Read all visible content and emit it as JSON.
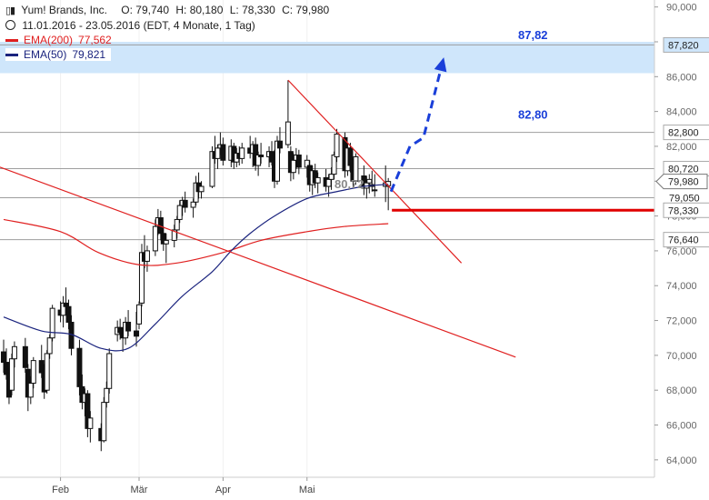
{
  "header": {
    "icon": "candlestick-icon",
    "instrument": "Yum! Brands, Inc.",
    "open": "O: 79,740",
    "high": "H: 80,180",
    "low": "L: 78,330",
    "close": "C: 79,980",
    "range": "11.01.2016 - 23.05.2016 (EDT, 4 Monate, 1 Tag)"
  },
  "legend": [
    {
      "label": "EMA(200)",
      "value": "77,562",
      "color": "#e02020"
    },
    {
      "label": "EMA(50)",
      "value": "79,821",
      "color": "#1a237e"
    }
  ],
  "colors": {
    "ema200": "#e02020",
    "ema50": "#1a237e",
    "target_band": "#cfe6fb",
    "annotation_blue": "#1a3fd9",
    "trendline": "#e02020",
    "support": "#e00000"
  },
  "chart_data": {
    "type": "candlestick",
    "ylim": [
      63,
      90.4
    ],
    "y_ticks": [
      "64,000",
      "66,000",
      "68,000",
      "70,000",
      "72,000",
      "74,000",
      "76,000",
      "78,000",
      "80,000",
      "82,000",
      "84,000",
      "86,000",
      "88,000",
      "90,000"
    ],
    "y_tick_values": [
      64,
      66,
      68,
      70,
      72,
      74,
      76,
      78,
      80,
      82,
      84,
      86,
      88,
      90
    ],
    "x_ticks": [
      {
        "label": "Feb",
        "date": "2016-02-01"
      },
      {
        "label": "Mär",
        "date": "2016-03-01"
      },
      {
        "label": "Apr",
        "date": "2016-04-01"
      },
      {
        "label": "Mai",
        "date": "2016-05-02"
      }
    ],
    "candles": [
      {
        "date": "2016-01-11",
        "o": 70.2,
        "h": 70.9,
        "l": 69.0,
        "c": 69.6
      },
      {
        "date": "2016-01-12",
        "o": 69.6,
        "h": 70.4,
        "l": 68.6,
        "c": 68.9
      },
      {
        "date": "2016-01-13",
        "o": 68.9,
        "h": 69.3,
        "l": 67.2,
        "c": 67.6
      },
      {
        "date": "2016-01-14",
        "o": 68.0,
        "h": 70.1,
        "l": 67.7,
        "c": 69.8
      },
      {
        "date": "2016-01-15",
        "o": 69.8,
        "h": 70.8,
        "l": 69.3,
        "c": 70.5
      },
      {
        "date": "2016-01-19",
        "o": 70.5,
        "h": 71.0,
        "l": 69.0,
        "c": 69.3
      },
      {
        "date": "2016-01-20",
        "o": 69.2,
        "h": 69.5,
        "l": 66.8,
        "c": 67.6
      },
      {
        "date": "2016-01-21",
        "o": 67.6,
        "h": 68.8,
        "l": 67.2,
        "c": 68.4
      },
      {
        "date": "2016-01-22",
        "o": 68.4,
        "h": 69.9,
        "l": 68.1,
        "c": 69.7
      },
      {
        "date": "2016-01-25",
        "o": 69.7,
        "h": 70.6,
        "l": 68.7,
        "c": 69.0
      },
      {
        "date": "2016-01-26",
        "o": 69.0,
        "h": 69.5,
        "l": 67.5,
        "c": 67.9
      },
      {
        "date": "2016-01-27",
        "o": 68.0,
        "h": 70.3,
        "l": 67.8,
        "c": 70.1
      },
      {
        "date": "2016-01-28",
        "o": 70.1,
        "h": 71.2,
        "l": 69.8,
        "c": 71.0
      },
      {
        "date": "2016-01-29",
        "o": 71.0,
        "h": 72.9,
        "l": 70.8,
        "c": 72.7
      },
      {
        "date": "2016-02-01",
        "o": 72.6,
        "h": 73.1,
        "l": 71.9,
        "c": 72.3
      },
      {
        "date": "2016-02-02",
        "o": 72.3,
        "h": 73.4,
        "l": 71.6,
        "c": 73.0
      },
      {
        "date": "2016-02-03",
        "o": 73.0,
        "h": 73.9,
        "l": 72.4,
        "c": 72.8
      },
      {
        "date": "2016-02-04",
        "o": 72.8,
        "h": 73.2,
        "l": 71.5,
        "c": 71.9
      },
      {
        "date": "2016-02-05",
        "o": 71.9,
        "h": 72.3,
        "l": 70.0,
        "c": 70.4
      },
      {
        "date": "2016-02-08",
        "o": 70.4,
        "h": 70.9,
        "l": 67.7,
        "c": 68.2
      },
      {
        "date": "2016-02-09",
        "o": 68.2,
        "h": 68.9,
        "l": 66.9,
        "c": 67.3
      },
      {
        "date": "2016-02-10",
        "o": 67.3,
        "h": 68.1,
        "l": 66.5,
        "c": 67.8
      },
      {
        "date": "2016-02-11",
        "o": 67.8,
        "h": 68.0,
        "l": 65.3,
        "c": 65.8
      },
      {
        "date": "2016-02-12",
        "o": 65.8,
        "h": 66.8,
        "l": 65.0,
        "c": 66.4
      },
      {
        "date": "2016-02-16",
        "o": 65.8,
        "h": 66.1,
        "l": 64.5,
        "c": 65.1
      },
      {
        "date": "2016-02-17",
        "o": 65.1,
        "h": 67.6,
        "l": 65.0,
        "c": 67.3
      },
      {
        "date": "2016-02-18",
        "o": 67.3,
        "h": 68.5,
        "l": 67.0,
        "c": 68.1
      },
      {
        "date": "2016-02-19",
        "o": 68.1,
        "h": 70.4,
        "l": 67.8,
        "c": 70.1
      },
      {
        "date": "2016-02-22",
        "o": 71.2,
        "h": 72.0,
        "l": 70.8,
        "c": 71.6
      },
      {
        "date": "2016-02-23",
        "o": 71.6,
        "h": 72.1,
        "l": 70.9,
        "c": 71.3
      },
      {
        "date": "2016-02-24",
        "o": 71.3,
        "h": 71.6,
        "l": 70.2,
        "c": 71.0
      },
      {
        "date": "2016-02-25",
        "o": 71.0,
        "h": 72.2,
        "l": 70.6,
        "c": 71.9
      },
      {
        "date": "2016-02-26",
        "o": 71.9,
        "h": 72.6,
        "l": 71.1,
        "c": 71.4
      },
      {
        "date": "2016-02-29",
        "o": 71.4,
        "h": 72.5,
        "l": 70.5,
        "c": 71.1
      },
      {
        "date": "2016-03-01",
        "o": 71.8,
        "h": 73.1,
        "l": 71.5,
        "c": 72.9
      },
      {
        "date": "2016-03-02",
        "o": 73.0,
        "h": 76.4,
        "l": 72.8,
        "c": 75.9
      },
      {
        "date": "2016-03-03",
        "o": 75.9,
        "h": 76.9,
        "l": 75.0,
        "c": 75.4
      },
      {
        "date": "2016-03-04",
        "o": 75.4,
        "h": 76.3,
        "l": 74.8,
        "c": 76.0
      },
      {
        "date": "2016-03-07",
        "o": 76.0,
        "h": 77.8,
        "l": 75.7,
        "c": 77.4
      },
      {
        "date": "2016-03-08",
        "o": 77.4,
        "h": 78.4,
        "l": 76.9,
        "c": 77.9
      },
      {
        "date": "2016-03-09",
        "o": 77.9,
        "h": 78.3,
        "l": 76.6,
        "c": 77.0
      },
      {
        "date": "2016-03-10",
        "o": 77.0,
        "h": 77.4,
        "l": 76.0,
        "c": 76.4
      },
      {
        "date": "2016-03-11",
        "o": 76.4,
        "h": 77.0,
        "l": 75.3,
        "c": 76.6
      },
      {
        "date": "2016-03-14",
        "o": 76.6,
        "h": 77.5,
        "l": 76.2,
        "c": 77.2
      },
      {
        "date": "2016-03-15",
        "o": 77.2,
        "h": 78.0,
        "l": 76.7,
        "c": 77.8
      },
      {
        "date": "2016-03-16",
        "o": 77.8,
        "h": 78.9,
        "l": 77.6,
        "c": 78.6
      },
      {
        "date": "2016-03-17",
        "o": 78.6,
        "h": 79.1,
        "l": 78.0,
        "c": 78.9
      },
      {
        "date": "2016-03-18",
        "o": 78.9,
        "h": 79.4,
        "l": 78.2,
        "c": 78.5
      },
      {
        "date": "2016-03-21",
        "o": 78.5,
        "h": 79.0,
        "l": 77.9,
        "c": 78.8
      },
      {
        "date": "2016-03-22",
        "o": 78.8,
        "h": 80.3,
        "l": 78.6,
        "c": 79.9
      },
      {
        "date": "2016-03-23",
        "o": 79.9,
        "h": 80.5,
        "l": 79.0,
        "c": 79.4
      },
      {
        "date": "2016-03-24",
        "o": 79.4,
        "h": 80.0,
        "l": 79.0,
        "c": 79.7
      },
      {
        "date": "2016-03-28",
        "o": 79.7,
        "h": 82.0,
        "l": 79.6,
        "c": 81.7
      },
      {
        "date": "2016-03-29",
        "o": 81.7,
        "h": 82.6,
        "l": 81.0,
        "c": 81.3
      },
      {
        "date": "2016-03-30",
        "o": 81.3,
        "h": 82.1,
        "l": 80.7,
        "c": 81.9
      },
      {
        "date": "2016-03-31",
        "o": 81.9,
        "h": 82.8,
        "l": 81.5,
        "c": 82.1
      },
      {
        "date": "2016-04-01",
        "o": 82.1,
        "h": 82.5,
        "l": 80.9,
        "c": 81.2
      },
      {
        "date": "2016-04-04",
        "o": 81.2,
        "h": 82.4,
        "l": 80.8,
        "c": 82.0
      },
      {
        "date": "2016-04-05",
        "o": 82.0,
        "h": 82.2,
        "l": 80.7,
        "c": 81.1
      },
      {
        "date": "2016-04-06",
        "o": 81.1,
        "h": 81.9,
        "l": 80.8,
        "c": 81.6
      },
      {
        "date": "2016-04-07",
        "o": 81.6,
        "h": 82.0,
        "l": 80.9,
        "c": 81.3
      },
      {
        "date": "2016-04-08",
        "o": 81.3,
        "h": 82.2,
        "l": 81.0,
        "c": 81.9
      },
      {
        "date": "2016-04-11",
        "o": 81.9,
        "h": 82.6,
        "l": 81.3,
        "c": 81.6
      },
      {
        "date": "2016-04-12",
        "o": 81.6,
        "h": 82.3,
        "l": 80.8,
        "c": 82.1
      },
      {
        "date": "2016-04-13",
        "o": 82.1,
        "h": 82.5,
        "l": 80.6,
        "c": 80.9
      },
      {
        "date": "2016-04-14",
        "o": 80.9,
        "h": 81.7,
        "l": 80.3,
        "c": 81.5
      },
      {
        "date": "2016-04-15",
        "o": 81.5,
        "h": 82.2,
        "l": 81.0,
        "c": 81.4
      },
      {
        "date": "2016-04-18",
        "o": 81.4,
        "h": 82.0,
        "l": 80.8,
        "c": 81.7
      },
      {
        "date": "2016-04-19",
        "o": 81.7,
        "h": 82.3,
        "l": 80.9,
        "c": 81.1
      },
      {
        "date": "2016-04-20",
        "o": 81.1,
        "h": 81.8,
        "l": 79.6,
        "c": 80.0
      },
      {
        "date": "2016-04-21",
        "o": 80.0,
        "h": 82.6,
        "l": 79.8,
        "c": 82.3
      },
      {
        "date": "2016-04-22",
        "o": 82.3,
        "h": 83.1,
        "l": 81.6,
        "c": 81.9
      },
      {
        "date": "2016-04-25",
        "o": 82.1,
        "h": 85.8,
        "l": 81.9,
        "c": 83.4
      },
      {
        "date": "2016-04-26",
        "o": 81.7,
        "h": 82.0,
        "l": 80.0,
        "c": 80.5
      },
      {
        "date": "2016-04-27",
        "o": 80.5,
        "h": 81.6,
        "l": 80.1,
        "c": 81.2
      },
      {
        "date": "2016-04-28",
        "o": 81.2,
        "h": 81.9,
        "l": 80.7,
        "c": 81.5
      },
      {
        "date": "2016-04-29",
        "o": 81.5,
        "h": 81.8,
        "l": 80.4,
        "c": 80.8
      },
      {
        "date": "2016-05-02",
        "o": 80.8,
        "h": 81.5,
        "l": 80.2,
        "c": 81.2
      },
      {
        "date": "2016-05-03",
        "o": 80.9,
        "h": 81.2,
        "l": 79.4,
        "c": 79.8
      },
      {
        "date": "2016-05-04",
        "o": 79.8,
        "h": 80.9,
        "l": 79.2,
        "c": 80.6
      },
      {
        "date": "2016-05-05",
        "o": 80.6,
        "h": 81.0,
        "l": 79.6,
        "c": 79.9
      },
      {
        "date": "2016-05-06",
        "o": 79.9,
        "h": 80.5,
        "l": 79.3,
        "c": 80.2
      },
      {
        "date": "2016-05-09",
        "o": 80.2,
        "h": 80.7,
        "l": 79.4,
        "c": 79.7
      },
      {
        "date": "2016-05-10",
        "o": 79.7,
        "h": 80.4,
        "l": 79.1,
        "c": 80.1
      },
      {
        "date": "2016-05-11",
        "o": 80.1,
        "h": 80.8,
        "l": 79.5,
        "c": 80.4
      },
      {
        "date": "2016-05-12",
        "o": 80.4,
        "h": 81.7,
        "l": 80.1,
        "c": 81.5
      },
      {
        "date": "2016-05-13",
        "o": 81.4,
        "h": 83.0,
        "l": 81.1,
        "c": 82.7
      },
      {
        "date": "2016-05-16",
        "o": 82.5,
        "h": 82.8,
        "l": 80.2,
        "c": 80.6
      },
      {
        "date": "2016-05-17",
        "o": 80.6,
        "h": 82.2,
        "l": 80.3,
        "c": 81.9
      },
      {
        "date": "2016-05-18",
        "o": 81.9,
        "h": 82.2,
        "l": 80.5,
        "c": 80.9
      },
      {
        "date": "2016-05-19",
        "o": 80.9,
        "h": 81.3,
        "l": 79.6,
        "c": 80.0
      },
      {
        "date": "2016-05-20",
        "o": 80.0,
        "h": 81.6,
        "l": 79.8,
        "c": 81.4
      },
      {
        "date": "2016-05-23",
        "o": 80.3,
        "h": 80.9,
        "l": 79.2,
        "c": 79.6
      },
      {
        "date": "2016-05-24",
        "o": 79.6,
        "h": 80.3,
        "l": 79.0,
        "c": 79.9
      },
      {
        "date": "2016-05-25",
        "o": 79.9,
        "h": 80.4,
        "l": 79.3,
        "c": 80.1
      },
      {
        "date": "2016-05-26",
        "o": 79.7,
        "h": 80.6,
        "l": 79.4,
        "c": 79.8
      },
      {
        "date": "2016-05-27",
        "o": 79.5,
        "h": 80.4,
        "l": 79.1,
        "c": 79.5
      },
      {
        "date": "2016-05-31",
        "o": 79.7,
        "h": 80.9,
        "l": 78.8,
        "c": 79.9
      },
      {
        "date": "2016-06-01",
        "o": 79.74,
        "h": 80.18,
        "l": 78.33,
        "c": 79.98
      }
    ],
    "ema200": [
      {
        "date": "2016-01-11",
        "v": 77.8
      },
      {
        "date": "2016-02-01",
        "v": 77.1
      },
      {
        "date": "2016-02-15",
        "v": 75.9
      },
      {
        "date": "2016-03-01",
        "v": 75.2
      },
      {
        "date": "2016-03-15",
        "v": 75.3
      },
      {
        "date": "2016-04-01",
        "v": 75.9
      },
      {
        "date": "2016-04-15",
        "v": 76.6
      },
      {
        "date": "2016-05-02",
        "v": 77.1
      },
      {
        "date": "2016-05-16",
        "v": 77.4
      },
      {
        "date": "2016-06-01",
        "v": 77.56
      }
    ],
    "ema50": [
      {
        "date": "2016-01-11",
        "v": 72.2
      },
      {
        "date": "2016-01-25",
        "v": 71.4
      },
      {
        "date": "2016-02-05",
        "v": 71.2
      },
      {
        "date": "2016-02-16",
        "v": 70.4
      },
      {
        "date": "2016-02-26",
        "v": 70.4
      },
      {
        "date": "2016-03-07",
        "v": 71.8
      },
      {
        "date": "2016-03-17",
        "v": 73.4
      },
      {
        "date": "2016-03-28",
        "v": 74.8
      },
      {
        "date": "2016-04-04",
        "v": 76.0
      },
      {
        "date": "2016-04-11",
        "v": 77.0
      },
      {
        "date": "2016-04-20",
        "v": 78.0
      },
      {
        "date": "2016-05-02",
        "v": 79.0
      },
      {
        "date": "2016-05-13",
        "v": 79.4
      },
      {
        "date": "2016-05-23",
        "v": 79.7
      },
      {
        "date": "2016-06-01",
        "v": 79.82
      }
    ],
    "price_tags": [
      {
        "label": "87,820",
        "v": 87.82,
        "style": "band"
      },
      {
        "label": "82,800",
        "v": 82.8,
        "style": "box"
      },
      {
        "label": "80,720",
        "v": 80.72,
        "style": "box"
      },
      {
        "label": "79,980",
        "v": 79.98,
        "style": "current"
      },
      {
        "label": "79,050",
        "v": 79.05,
        "style": "plain"
      },
      {
        "label": "78,330",
        "v": 78.33,
        "style": "box"
      },
      {
        "label": "76,640",
        "v": 76.64,
        "style": "box"
      }
    ],
    "annotations": {
      "target_upper": "87,82",
      "target_lower": "82,80",
      "mid_level": "80,72"
    },
    "target_band": [
      86.2,
      88.0
    ],
    "resistance_lines": [
      82.8,
      80.72,
      79.05,
      76.64
    ],
    "support_line": {
      "v": 78.33,
      "from": "2016-06-01"
    },
    "trendline_long": [
      {
        "date": "2016-01-08",
        "v": 80.9
      },
      {
        "date": "2016-07-18",
        "v": 69.9
      }
    ],
    "trendline_short": [
      {
        "date": "2016-04-25",
        "v": 85.8
      },
      {
        "date": "2016-06-28",
        "v": 75.3
      }
    ],
    "ema_short_end": "2016-06-01",
    "forecast_path": [
      {
        "date": "2016-06-02",
        "v": 79.4
      },
      {
        "date": "2016-06-09",
        "v": 82.0
      },
      {
        "date": "2016-06-14",
        "v": 82.5
      },
      {
        "date": "2016-06-21",
        "v": 86.8
      }
    ]
  }
}
